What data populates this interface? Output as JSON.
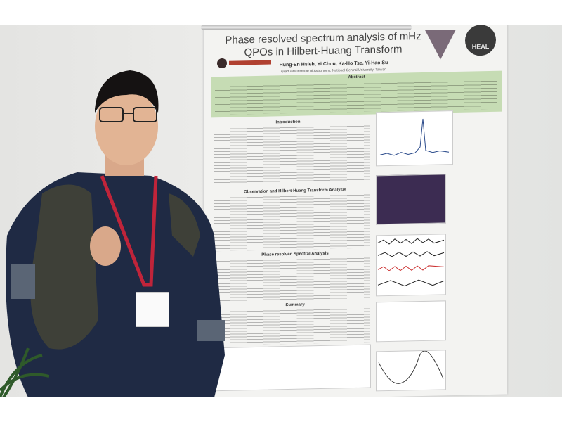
{
  "poster": {
    "title": "Phase resolved spectrum analysis of mHz QPOs in Hilbert-Huang Transform",
    "authors": "Hung-En Hsieh, Yi Chou, Ka-Ho Tse, Yi-Hao Su",
    "affiliation": "Graduate Institute of Astronomy, National Central University, Taiwan",
    "logo_text": "HEAL",
    "sections": {
      "abstract": "Abstract",
      "introduction": "Introduction",
      "observation": "Observation and Hilbert-Huang Transform Analysis",
      "phase": "Phase resolved Spectral Analysis",
      "summary": "Summary"
    }
  },
  "colors": {
    "abstract_bg": "#c6dcb4",
    "shirt": "#1f2a44",
    "lanyard": "#c0243a",
    "backpack": "#3e4038"
  }
}
